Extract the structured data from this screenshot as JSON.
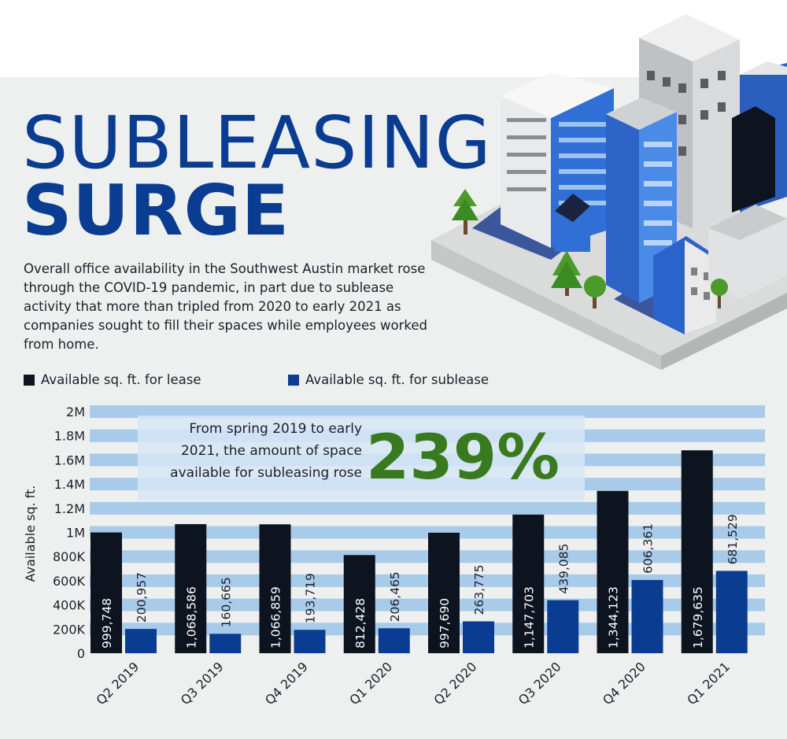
{
  "title_line1": "SUBLEASING",
  "title_line2": "SURGE",
  "intro": "Overall office availability in the Southwest Austin market rose through the COVID-19 pandemic, in part due to sublease activity that more than tripled from 2020 to early 2021 as companies sought to fill their spaces while employees worked from home.",
  "legend": {
    "lease": "Available sq. ft. for lease",
    "sublease": "Available sq. ft. for sublease"
  },
  "colors": {
    "title": "#0a3d91",
    "lease": "#0e1320",
    "sublease": "#0a3d91",
    "band": "#a8cbea",
    "callout_bg": "#d6e6f5",
    "callout_number": "#3a7a1e"
  },
  "callout": {
    "line1": "From spring 2019 to early",
    "line2": "2021, the amount of space",
    "line3": "available for subleasing rose",
    "number": "239%"
  },
  "chart_data": {
    "type": "bar",
    "ylabel": "Available sq. ft.",
    "ylim": [
      0,
      2000000
    ],
    "yticks": [
      0,
      200000,
      400000,
      600000,
      800000,
      1000000,
      1200000,
      1400000,
      1600000,
      1800000,
      2000000
    ],
    "ytick_labels": [
      "0",
      "200K",
      "400K",
      "600K",
      "800K",
      "1M",
      "1.2M",
      "1.4M",
      "1.6M",
      "1.8M",
      "2M"
    ],
    "categories": [
      "Q2 2019",
      "Q3 2019",
      "Q4 2019",
      "Q1 2020",
      "Q2 2020",
      "Q3 2020",
      "Q4 2020",
      "Q1 2021"
    ],
    "series": [
      {
        "name": "Available sq. ft. for lease",
        "values": [
          999748,
          1068586,
          1066859,
          812428,
          997690,
          1147703,
          1344123,
          1679635
        ],
        "labels": [
          "999,748",
          "1,068,586",
          "1,066,859",
          "812,428",
          "997,690",
          "1,147,703",
          "1,344,123",
          "1,679,635"
        ]
      },
      {
        "name": "Available sq. ft. for sublease",
        "values": [
          200957,
          160665,
          193719,
          206465,
          263775,
          439085,
          606361,
          681529
        ],
        "labels": [
          "200,957",
          "160,665",
          "193,719",
          "206,465",
          "263,775",
          "439,085",
          "606,361",
          "681,529"
        ]
      }
    ]
  }
}
